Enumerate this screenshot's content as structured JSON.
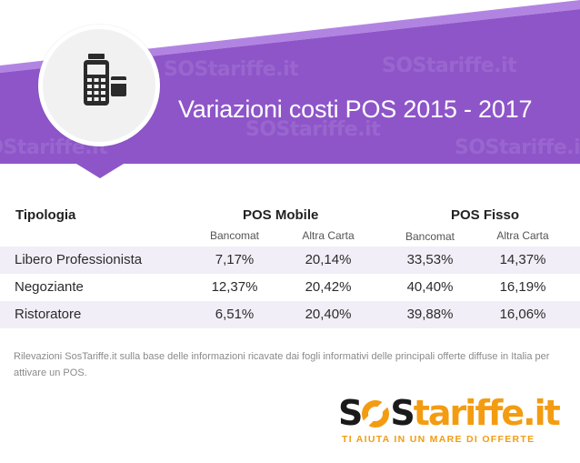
{
  "header": {
    "title": "Variazioni costi POS 2015 - 2017",
    "watermark": "SOStariffe.it",
    "icon": "pos-terminal-icon",
    "colors": {
      "purple": "#8e55c9",
      "purple_light": "#b284e2",
      "circle": "#f1f1f1",
      "icon": "#2b2b2b"
    }
  },
  "table": {
    "col_type": "Tipologia",
    "groups": [
      {
        "label": "POS Mobile",
        "subs": [
          "Bancomat",
          "Altra Carta"
        ]
      },
      {
        "label": "POS Fisso",
        "subs": [
          "Bancomat",
          "Altra Carta"
        ]
      }
    ],
    "rows": [
      {
        "label": "Libero Professionista",
        "values": [
          "7,17%",
          "20,14%",
          "33,53%",
          "14,37%"
        ]
      },
      {
        "label": "Negoziante",
        "values": [
          "12,37%",
          "20,42%",
          "40,40%",
          "16,19%"
        ]
      },
      {
        "label": "Ristoratore",
        "values": [
          "6,51%",
          "20,40%",
          "39,88%",
          "16,06%"
        ]
      }
    ]
  },
  "note": "Rilevazioni SosTariffe.it sulla base delle informazioni ricavate dai fogli informativi delle principali offerte diffuse in Italia per attivare un POS.",
  "logo": {
    "part1": "S",
    "part2": "S",
    "part3": "tariffe.it",
    "tagline": "TI AIUTA IN UN MARE DI OFFERTE",
    "colors": {
      "orange": "#f39c12",
      "dark": "#1a1a1a"
    }
  }
}
